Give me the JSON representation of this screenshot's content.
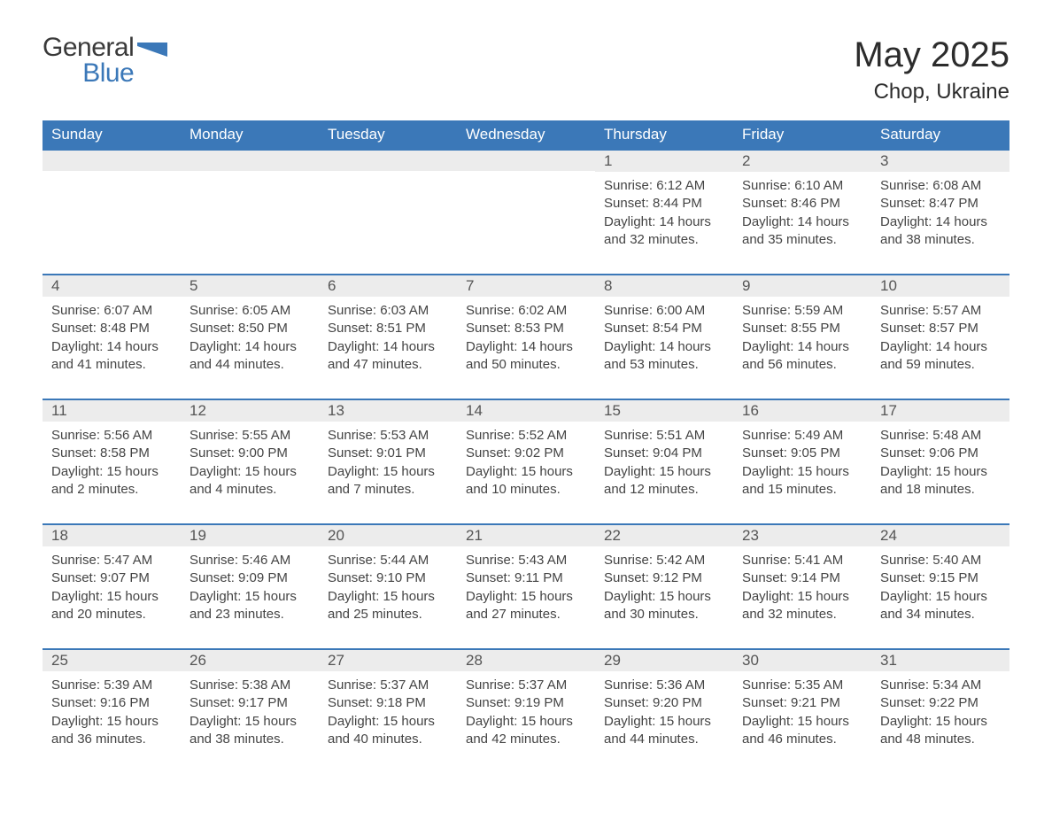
{
  "logo": {
    "line1": "General",
    "line2": "Blue",
    "flag_color": "#3b78b8",
    "text_color": "#3a3a3a"
  },
  "title": "May 2025",
  "subtitle": "Chop, Ukraine",
  "colors": {
    "header_bg": "#3b78b8",
    "header_text": "#ffffff",
    "daynum_bg": "#ececec",
    "daynum_border": "#3b78b8",
    "body_text": "#444444",
    "page_bg": "#ffffff"
  },
  "weekdays": [
    "Sunday",
    "Monday",
    "Tuesday",
    "Wednesday",
    "Thursday",
    "Friday",
    "Saturday"
  ],
  "weeks": [
    [
      null,
      null,
      null,
      null,
      {
        "n": "1",
        "sunrise": "6:12 AM",
        "sunset": "8:44 PM",
        "daylight": "14 hours and 32 minutes."
      },
      {
        "n": "2",
        "sunrise": "6:10 AM",
        "sunset": "8:46 PM",
        "daylight": "14 hours and 35 minutes."
      },
      {
        "n": "3",
        "sunrise": "6:08 AM",
        "sunset": "8:47 PM",
        "daylight": "14 hours and 38 minutes."
      }
    ],
    [
      {
        "n": "4",
        "sunrise": "6:07 AM",
        "sunset": "8:48 PM",
        "daylight": "14 hours and 41 minutes."
      },
      {
        "n": "5",
        "sunrise": "6:05 AM",
        "sunset": "8:50 PM",
        "daylight": "14 hours and 44 minutes."
      },
      {
        "n": "6",
        "sunrise": "6:03 AM",
        "sunset": "8:51 PM",
        "daylight": "14 hours and 47 minutes."
      },
      {
        "n": "7",
        "sunrise": "6:02 AM",
        "sunset": "8:53 PM",
        "daylight": "14 hours and 50 minutes."
      },
      {
        "n": "8",
        "sunrise": "6:00 AM",
        "sunset": "8:54 PM",
        "daylight": "14 hours and 53 minutes."
      },
      {
        "n": "9",
        "sunrise": "5:59 AM",
        "sunset": "8:55 PM",
        "daylight": "14 hours and 56 minutes."
      },
      {
        "n": "10",
        "sunrise": "5:57 AM",
        "sunset": "8:57 PM",
        "daylight": "14 hours and 59 minutes."
      }
    ],
    [
      {
        "n": "11",
        "sunrise": "5:56 AM",
        "sunset": "8:58 PM",
        "daylight": "15 hours and 2 minutes."
      },
      {
        "n": "12",
        "sunrise": "5:55 AM",
        "sunset": "9:00 PM",
        "daylight": "15 hours and 4 minutes."
      },
      {
        "n": "13",
        "sunrise": "5:53 AM",
        "sunset": "9:01 PM",
        "daylight": "15 hours and 7 minutes."
      },
      {
        "n": "14",
        "sunrise": "5:52 AM",
        "sunset": "9:02 PM",
        "daylight": "15 hours and 10 minutes."
      },
      {
        "n": "15",
        "sunrise": "5:51 AM",
        "sunset": "9:04 PM",
        "daylight": "15 hours and 12 minutes."
      },
      {
        "n": "16",
        "sunrise": "5:49 AM",
        "sunset": "9:05 PM",
        "daylight": "15 hours and 15 minutes."
      },
      {
        "n": "17",
        "sunrise": "5:48 AM",
        "sunset": "9:06 PM",
        "daylight": "15 hours and 18 minutes."
      }
    ],
    [
      {
        "n": "18",
        "sunrise": "5:47 AM",
        "sunset": "9:07 PM",
        "daylight": "15 hours and 20 minutes."
      },
      {
        "n": "19",
        "sunrise": "5:46 AM",
        "sunset": "9:09 PM",
        "daylight": "15 hours and 23 minutes."
      },
      {
        "n": "20",
        "sunrise": "5:44 AM",
        "sunset": "9:10 PM",
        "daylight": "15 hours and 25 minutes."
      },
      {
        "n": "21",
        "sunrise": "5:43 AM",
        "sunset": "9:11 PM",
        "daylight": "15 hours and 27 minutes."
      },
      {
        "n": "22",
        "sunrise": "5:42 AM",
        "sunset": "9:12 PM",
        "daylight": "15 hours and 30 minutes."
      },
      {
        "n": "23",
        "sunrise": "5:41 AM",
        "sunset": "9:14 PM",
        "daylight": "15 hours and 32 minutes."
      },
      {
        "n": "24",
        "sunrise": "5:40 AM",
        "sunset": "9:15 PM",
        "daylight": "15 hours and 34 minutes."
      }
    ],
    [
      {
        "n": "25",
        "sunrise": "5:39 AM",
        "sunset": "9:16 PM",
        "daylight": "15 hours and 36 minutes."
      },
      {
        "n": "26",
        "sunrise": "5:38 AM",
        "sunset": "9:17 PM",
        "daylight": "15 hours and 38 minutes."
      },
      {
        "n": "27",
        "sunrise": "5:37 AM",
        "sunset": "9:18 PM",
        "daylight": "15 hours and 40 minutes."
      },
      {
        "n": "28",
        "sunrise": "5:37 AM",
        "sunset": "9:19 PM",
        "daylight": "15 hours and 42 minutes."
      },
      {
        "n": "29",
        "sunrise": "5:36 AM",
        "sunset": "9:20 PM",
        "daylight": "15 hours and 44 minutes."
      },
      {
        "n": "30",
        "sunrise": "5:35 AM",
        "sunset": "9:21 PM",
        "daylight": "15 hours and 46 minutes."
      },
      {
        "n": "31",
        "sunrise": "5:34 AM",
        "sunset": "9:22 PM",
        "daylight": "15 hours and 48 minutes."
      }
    ]
  ],
  "labels": {
    "sunrise": "Sunrise:",
    "sunset": "Sunset:",
    "daylight": "Daylight:"
  }
}
